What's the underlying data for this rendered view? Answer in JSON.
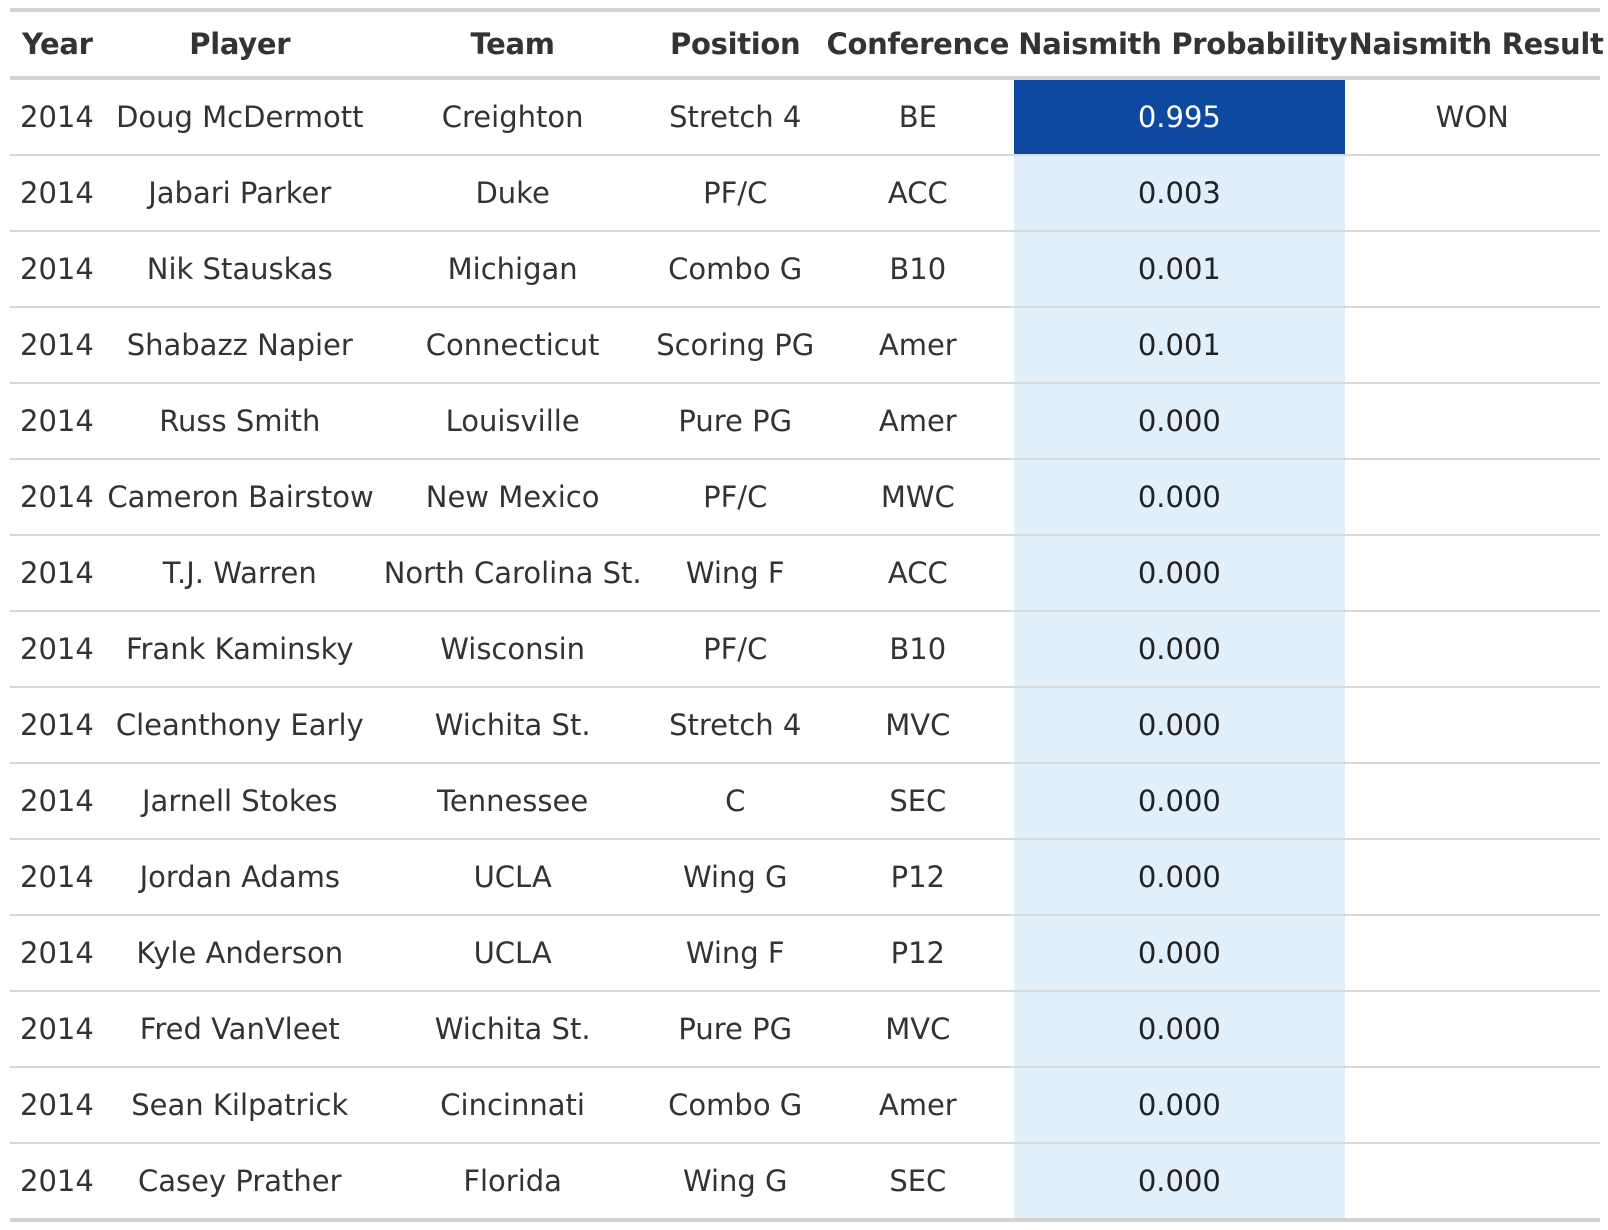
{
  "chart_data": {
    "type": "table",
    "columns": [
      "Year",
      "Player",
      "Team",
      "Position",
      "Conference",
      "Naismith Probability",
      "Naismith Result"
    ],
    "rows": [
      [
        "2014",
        "Doug McDermott",
        "Creighton",
        "Stretch 4",
        "BE",
        "0.995",
        "WON"
      ],
      [
        "2014",
        "Jabari Parker",
        "Duke",
        "PF/C",
        "ACC",
        "0.003",
        ""
      ],
      [
        "2014",
        "Nik Stauskas",
        "Michigan",
        "Combo G",
        "B10",
        "0.001",
        ""
      ],
      [
        "2014",
        "Shabazz Napier",
        "Connecticut",
        "Scoring PG",
        "Amer",
        "0.001",
        ""
      ],
      [
        "2014",
        "Russ Smith",
        "Louisville",
        "Pure PG",
        "Amer",
        "0.000",
        ""
      ],
      [
        "2014",
        "Cameron Bairstow",
        "New Mexico",
        "PF/C",
        "MWC",
        "0.000",
        ""
      ],
      [
        "2014",
        "T.J. Warren",
        "North Carolina St.",
        "Wing F",
        "ACC",
        "0.000",
        ""
      ],
      [
        "2014",
        "Frank Kaminsky",
        "Wisconsin",
        "PF/C",
        "B10",
        "0.000",
        ""
      ],
      [
        "2014",
        "Cleanthony Early",
        "Wichita St.",
        "Stretch 4",
        "MVC",
        "0.000",
        ""
      ],
      [
        "2014",
        "Jarnell Stokes",
        "Tennessee",
        "C",
        "SEC",
        "0.000",
        ""
      ],
      [
        "2014",
        "Jordan Adams",
        "UCLA",
        "Wing G",
        "P12",
        "0.000",
        ""
      ],
      [
        "2014",
        "Kyle Anderson",
        "UCLA",
        "Wing F",
        "P12",
        "0.000",
        ""
      ],
      [
        "2014",
        "Fred VanVleet",
        "Wichita St.",
        "Pure PG",
        "MVC",
        "0.000",
        ""
      ],
      [
        "2014",
        "Sean Kilpatrick",
        "Cincinnati",
        "Combo G",
        "Amer",
        "0.000",
        ""
      ],
      [
        "2014",
        "Casey Prather",
        "Florida",
        "Wing G",
        "SEC",
        "0.000",
        ""
      ]
    ],
    "color_scale": {
      "column": "Naismith Probability",
      "low_color": "#e1effb",
      "high_color": "#0c47a1",
      "high_text_color": "#ffffff"
    }
  }
}
